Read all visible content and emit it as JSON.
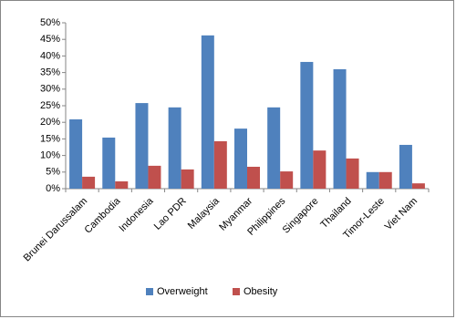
{
  "chart_data": {
    "type": "bar",
    "categories": [
      "Brunei Darussalam",
      "Cambodia",
      "Indonesia",
      "Lao PDR",
      "Malaysia",
      "Myanmar",
      "Philippines",
      "Singapore",
      "Thailand",
      "Timor-Leste",
      "Viet Nam"
    ],
    "series": [
      {
        "name": "Overweight",
        "color": "#4f81bd",
        "values": [
          20.9,
          15.4,
          25.8,
          24.5,
          46.2,
          18.1,
          24.5,
          38.2,
          36,
          5,
          13.2
        ]
      },
      {
        "name": "Obesity",
        "color": "#c0504d",
        "values": [
          3.6,
          2.2,
          6.9,
          5.8,
          14.3,
          6.6,
          5.2,
          11.5,
          9.1,
          5,
          1.6
        ]
      }
    ],
    "ylim": [
      0,
      50
    ],
    "yticks": [
      {
        "value": 0,
        "label": "0%"
      },
      {
        "value": 5,
        "label": "5%"
      },
      {
        "value": 10,
        "label": "10%"
      },
      {
        "value": 15,
        "label": "15%"
      },
      {
        "value": 20,
        "label": "20%"
      },
      {
        "value": 25,
        "label": "25%"
      },
      {
        "value": 30,
        "label": "30%"
      },
      {
        "value": 35,
        "label": "35%"
      },
      {
        "value": 40,
        "label": "40%"
      },
      {
        "value": 45,
        "label": "45%"
      },
      {
        "value": 50,
        "label": "50%"
      }
    ],
    "grid": false,
    "legend": "bottom"
  }
}
